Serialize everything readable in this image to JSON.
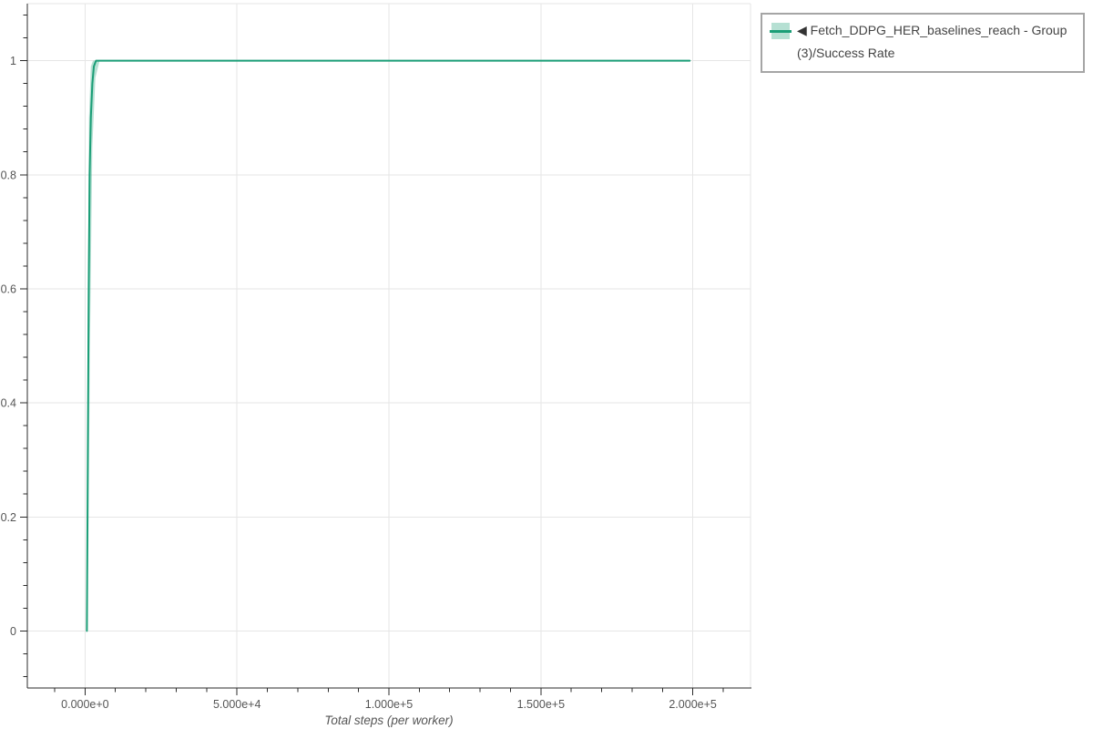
{
  "legend": {
    "arrow": "◀",
    "label": " Fetch_DDPG_HER_baselines_reach - Group(3)/Success Rate"
  },
  "chart_data": {
    "type": "line",
    "title": "",
    "xlabel": "Total steps (per worker)",
    "ylabel": "",
    "xlim": [
      -19000,
      219000
    ],
    "ylim": [
      -0.1,
      1.1
    ],
    "grid": true,
    "legend_position": "top-right",
    "x_major_ticks": [
      {
        "value": 0,
        "label": "0.000e+0"
      },
      {
        "value": 50000,
        "label": "5.000e+4"
      },
      {
        "value": 100000,
        "label": "1.000e+5"
      },
      {
        "value": 150000,
        "label": "1.500e+5"
      },
      {
        "value": 200000,
        "label": "2.000e+5"
      }
    ],
    "y_major_ticks": [
      {
        "value": 0,
        "label": "0"
      },
      {
        "value": 0.2,
        "label": "0.2"
      },
      {
        "value": 0.4,
        "label": "0.4"
      },
      {
        "value": 0.6,
        "label": "0.6"
      },
      {
        "value": 0.8,
        "label": "0.8"
      },
      {
        "value": 1,
        "label": "1"
      }
    ],
    "x_minor_step": 10000,
    "y_minor_step": 0.04,
    "colors": {
      "grid": "#e6e6e6",
      "axis": "#2b2b2b",
      "tick_label": "#555555",
      "axis_label": "#555555"
    },
    "series": [
      {
        "name": "Fetch_DDPG_HER_baselines_reach - Group(3)/Success Rate",
        "color": "#1b9e77",
        "band_color": "rgba(27,158,119,0.32)",
        "x": [
          600,
          900,
          1200,
          1500,
          1900,
          2400,
          2900,
          3600,
          5000,
          199000
        ],
        "y": [
          0,
          0.3,
          0.6,
          0.8,
          0.9,
          0.96,
          0.99,
          1,
          1,
          1
        ],
        "band": {
          "upper_x": [
            600,
            900,
            1300,
            1900,
            2600,
            199000
          ],
          "upper_y": [
            0,
            0.55,
            0.9,
            0.99,
            1,
            1
          ],
          "lower_x": [
            600,
            1100,
            1600,
            2400,
            3400,
            4800,
            199000
          ],
          "lower_y": [
            0,
            0.15,
            0.5,
            0.85,
            0.97,
            1,
            1
          ]
        }
      }
    ]
  }
}
